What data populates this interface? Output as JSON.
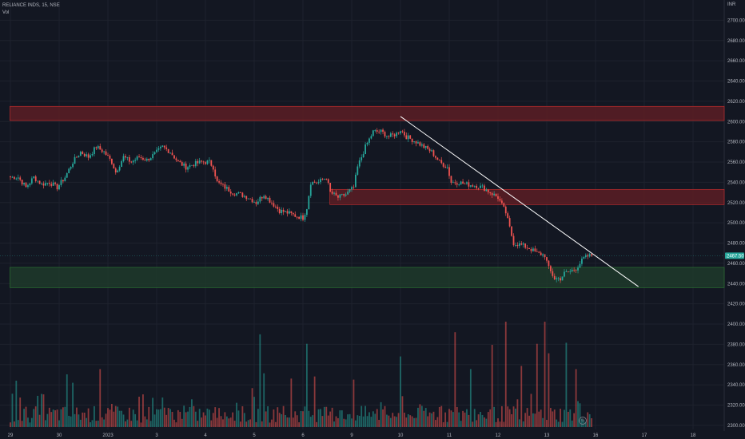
{
  "header": {
    "symbol": "RELIANCE INDS, 15, NSE",
    "volume_label": "Vol"
  },
  "axis": {
    "currency": "INR"
  },
  "price_badge": "2467.50",
  "settings_glyph": "⚙",
  "colors": {
    "background": "#131722",
    "grid": "#1e222d",
    "up": "#26a69a",
    "down": "#ef5350",
    "resistance_zone": "#5c1d24",
    "support_zone": "#1e3a2a",
    "trendline": "#ffffff",
    "price_badge": "#26a69a"
  },
  "chart_data": {
    "type": "candlestick",
    "title": "RELIANCE INDS, 15, NSE",
    "y_ticks": [
      2700,
      2680,
      2660,
      2640,
      2620,
      2600,
      2580,
      2560,
      2540,
      2520,
      2500,
      2480,
      2460,
      2440,
      2420,
      2400,
      2380,
      2360,
      2340,
      2320,
      2300
    ],
    "y_tick_labels": [
      "2700.00",
      "2680.00",
      "2660.00",
      "2640.00",
      "2620.00",
      "2600.00",
      "2580.00",
      "2560.00",
      "2540.00",
      "2520.00",
      "2500.00",
      "2480.00",
      "2460.00",
      "2440.00",
      "2420.00",
      "2400.00",
      "2380.00",
      "2360.00",
      "2340.00",
      "2320.00",
      "2300.00"
    ],
    "ylim": [
      2296,
      2720
    ],
    "x_labels": [
      "29",
      "30",
      "2023",
      "3",
      "4",
      "5",
      "6",
      "9",
      "10",
      "11",
      "12",
      "13",
      "16",
      "17",
      "18"
    ],
    "x_label_bar_index": [
      0,
      25,
      50,
      75,
      100,
      125,
      150,
      175,
      200,
      225,
      250,
      275,
      300,
      325,
      350
    ],
    "bar_count_total": 360,
    "last_price": 2467.5,
    "zones": [
      {
        "type": "resistance",
        "y_low": 2601,
        "y_high": 2615,
        "start_bar": 0
      },
      {
        "type": "resistance",
        "y_low": 2518,
        "y_high": 2533,
        "start_bar": 164
      },
      {
        "type": "support",
        "y_low": 2436,
        "y_high": 2456,
        "start_bar": 0
      }
    ],
    "trendline": {
      "start": [
        200,
        2605
      ],
      "end": [
        322,
        2437
      ]
    },
    "anchors": [
      [
        0,
        2545
      ],
      [
        4,
        2545
      ],
      [
        8,
        2535
      ],
      [
        12,
        2545
      ],
      [
        16,
        2538
      ],
      [
        20,
        2540
      ],
      [
        24,
        2535
      ],
      [
        28,
        2545
      ],
      [
        32,
        2560
      ],
      [
        36,
        2570
      ],
      [
        40,
        2565
      ],
      [
        44,
        2575
      ],
      [
        48,
        2570
      ],
      [
        52,
        2560
      ],
      [
        54,
        2550
      ],
      [
        58,
        2565
      ],
      [
        62,
        2560
      ],
      [
        66,
        2565
      ],
      [
        70,
        2562
      ],
      [
        74,
        2568
      ],
      [
        78,
        2575
      ],
      [
        82,
        2570
      ],
      [
        86,
        2560
      ],
      [
        90,
        2555
      ],
      [
        94,
        2558
      ],
      [
        98,
        2560
      ],
      [
        102,
        2560
      ],
      [
        104,
        2555
      ],
      [
        106,
        2540
      ],
      [
        110,
        2535
      ],
      [
        114,
        2530
      ],
      [
        118,
        2528
      ],
      [
        122,
        2525
      ],
      [
        126,
        2520
      ],
      [
        130,
        2528
      ],
      [
        134,
        2520
      ],
      [
        138,
        2512
      ],
      [
        142,
        2510
      ],
      [
        146,
        2507
      ],
      [
        150,
        2505
      ],
      [
        152,
        2515
      ],
      [
        154,
        2540
      ],
      [
        158,
        2540
      ],
      [
        162,
        2545
      ],
      [
        164,
        2530
      ],
      [
        168,
        2525
      ],
      [
        172,
        2528
      ],
      [
        176,
        2535
      ],
      [
        178,
        2555
      ],
      [
        182,
        2575
      ],
      [
        186,
        2590
      ],
      [
        190,
        2590
      ],
      [
        194,
        2585
      ],
      [
        198,
        2588
      ],
      [
        200,
        2592
      ],
      [
        203,
        2585
      ],
      [
        208,
        2580
      ],
      [
        212,
        2575
      ],
      [
        216,
        2570
      ],
      [
        220,
        2560
      ],
      [
        224,
        2555
      ],
      [
        226,
        2540
      ],
      [
        230,
        2540
      ],
      [
        234,
        2538
      ],
      [
        238,
        2537
      ],
      [
        242,
        2535
      ],
      [
        246,
        2530
      ],
      [
        250,
        2525
      ],
      [
        254,
        2510
      ],
      [
        256,
        2495
      ],
      [
        258,
        2480
      ],
      [
        262,
        2478
      ],
      [
        266,
        2475
      ],
      [
        270,
        2470
      ],
      [
        274,
        2468
      ],
      [
        276,
        2455
      ],
      [
        279,
        2445
      ],
      [
        282,
        2445
      ],
      [
        284,
        2450
      ],
      [
        287,
        2452
      ],
      [
        290,
        2455
      ],
      [
        292,
        2460
      ],
      [
        294,
        2465
      ],
      [
        296,
        2467
      ],
      [
        298,
        2467.5
      ]
    ],
    "volume": {
      "base_level": 0.042,
      "spikes": [
        [
          3,
          0.44
        ],
        [
          5,
          0.28
        ],
        [
          17,
          0.31
        ],
        [
          29,
          0.5
        ],
        [
          32,
          0.42
        ],
        [
          46,
          0.55
        ],
        [
          68,
          0.31
        ],
        [
          78,
          0.28
        ],
        [
          116,
          0.23
        ],
        [
          128,
          0.88
        ],
        [
          130,
          0.51
        ],
        [
          144,
          0.46
        ],
        [
          152,
          0.79
        ],
        [
          156,
          0.48
        ],
        [
          176,
          0.45
        ],
        [
          200,
          0.67
        ],
        [
          228,
          0.9
        ],
        [
          236,
          0.55
        ],
        [
          247,
          0.78
        ],
        [
          254,
          1.0
        ],
        [
          262,
          0.58
        ],
        [
          270,
          0.79
        ],
        [
          274,
          1.0
        ],
        [
          276,
          0.7
        ],
        [
          285,
          0.8
        ],
        [
          290,
          0.55
        ]
      ],
      "note_last_bar": 298
    }
  }
}
